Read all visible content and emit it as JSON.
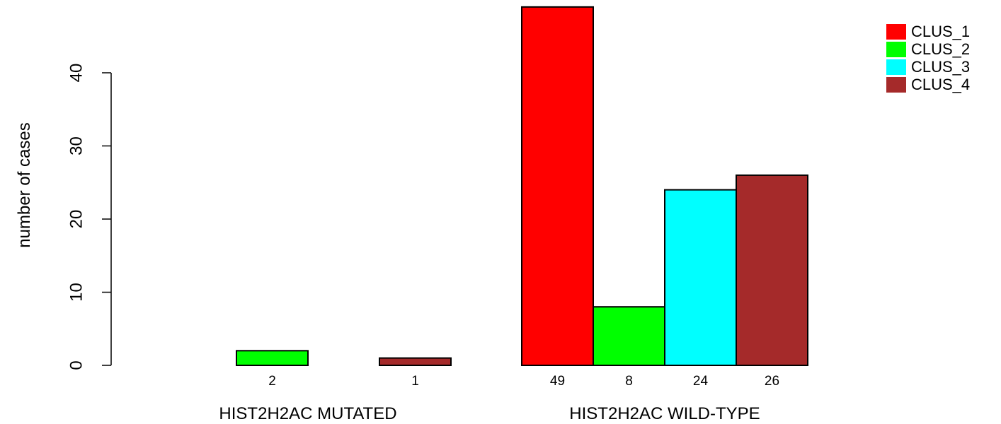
{
  "chart_data": {
    "type": "bar",
    "layout": "grouped",
    "ylabel": "number of cases",
    "xlabel": "",
    "ylim": [
      0,
      49
    ],
    "yticks": [
      0,
      10,
      20,
      30,
      40
    ],
    "groups": [
      "HIST2H2AC MUTATED",
      "HIST2H2AC WILD-TYPE"
    ],
    "series": [
      {
        "name": "CLUS_1",
        "color": "#ff0000",
        "values": [
          0,
          49
        ],
        "labels": [
          "",
          "49"
        ]
      },
      {
        "name": "CLUS_2",
        "color": "#00ff00",
        "values": [
          2,
          8
        ],
        "labels": [
          "2",
          "8"
        ]
      },
      {
        "name": "CLUS_3",
        "color": "#00ffff",
        "values": [
          0,
          24
        ],
        "labels": [
          "",
          "24"
        ]
      },
      {
        "name": "CLUS_4",
        "color": "#a52a2a",
        "values": [
          1,
          26
        ],
        "labels": [
          "1",
          "26"
        ]
      }
    ],
    "legend": "top-right",
    "grid": false
  }
}
